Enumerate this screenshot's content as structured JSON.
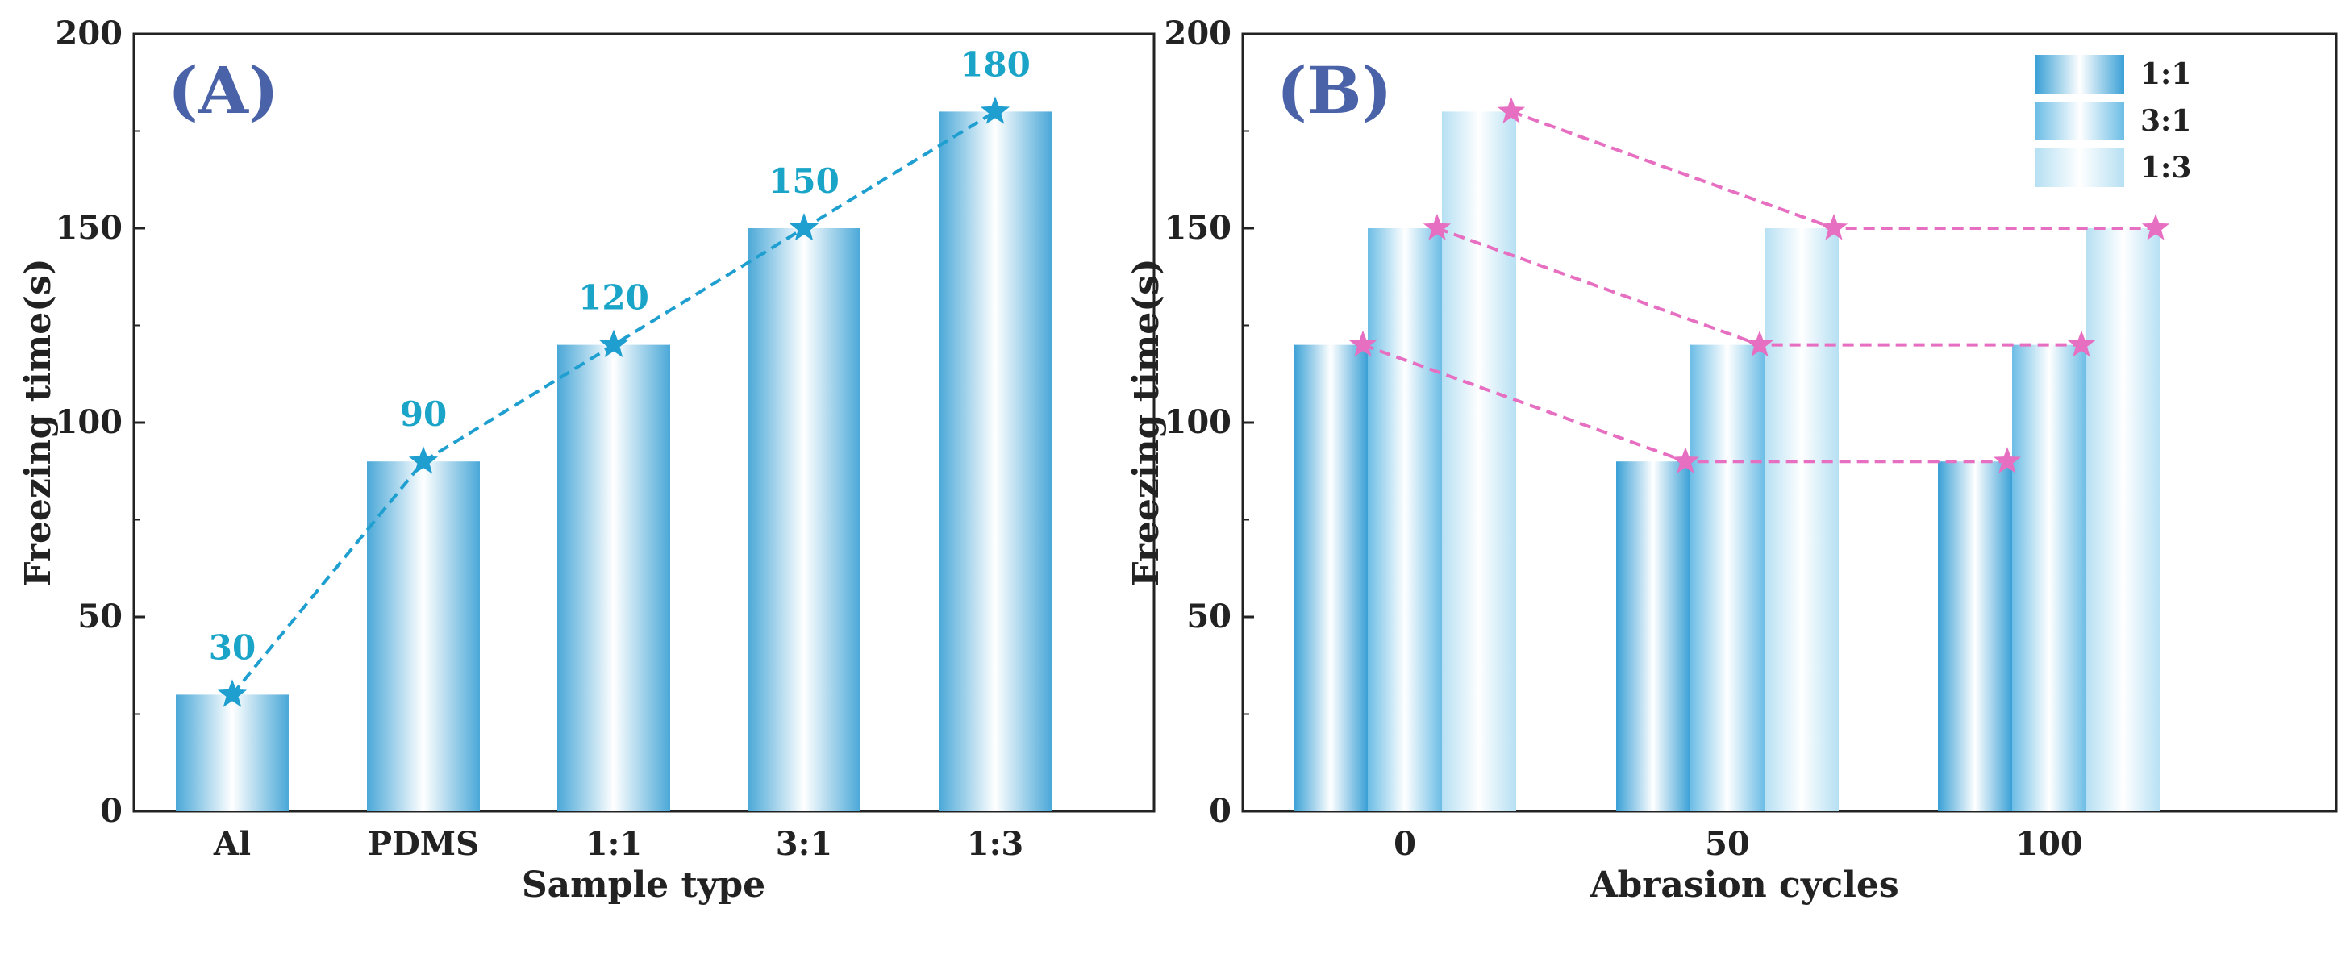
{
  "chart_data": [
    {
      "type": "bar",
      "panel_label": "(A)",
      "categories": [
        "Al",
        "PDMS",
        "1:1",
        "3:1",
        "1:3"
      ],
      "values": [
        30,
        90,
        120,
        150,
        180
      ],
      "data_labels": [
        "30",
        "90",
        "120",
        "150",
        "180"
      ],
      "line_overlay": {
        "marker": "star",
        "style": "dashed",
        "values": [
          30,
          90,
          120,
          150,
          180
        ]
      },
      "xlabel": "Sample type",
      "ylabel": "Freezing time(s)",
      "ylim": [
        0,
        200
      ],
      "yticks": [
        "0",
        "50",
        "100",
        "150",
        "200"
      ],
      "colors": {
        "bar": "#4aa8d8",
        "line": "#1e9fd0",
        "label": "#1aa5c8"
      }
    },
    {
      "type": "bar",
      "panel_label": "(B)",
      "categories": [
        "0",
        "50",
        "100"
      ],
      "series": [
        {
          "name": "1:1",
          "values": [
            120,
            90,
            90
          ]
        },
        {
          "name": "3:1",
          "values": [
            150,
            120,
            120
          ]
        },
        {
          "name": "1:3",
          "values": [
            180,
            150,
            150
          ]
        }
      ],
      "line_overlay": {
        "marker": "star",
        "style": "dashed"
      },
      "xlabel": "Abrasion cycles",
      "ylabel": "Freezing time(s)",
      "ylim": [
        0,
        200
      ],
      "yticks": [
        "0",
        "50",
        "100",
        "150",
        "200"
      ],
      "legend_position": "top-right",
      "colors": {
        "line": "#e66fc1",
        "series_intensity": [
          1.0,
          0.8,
          0.45
        ]
      }
    }
  ]
}
